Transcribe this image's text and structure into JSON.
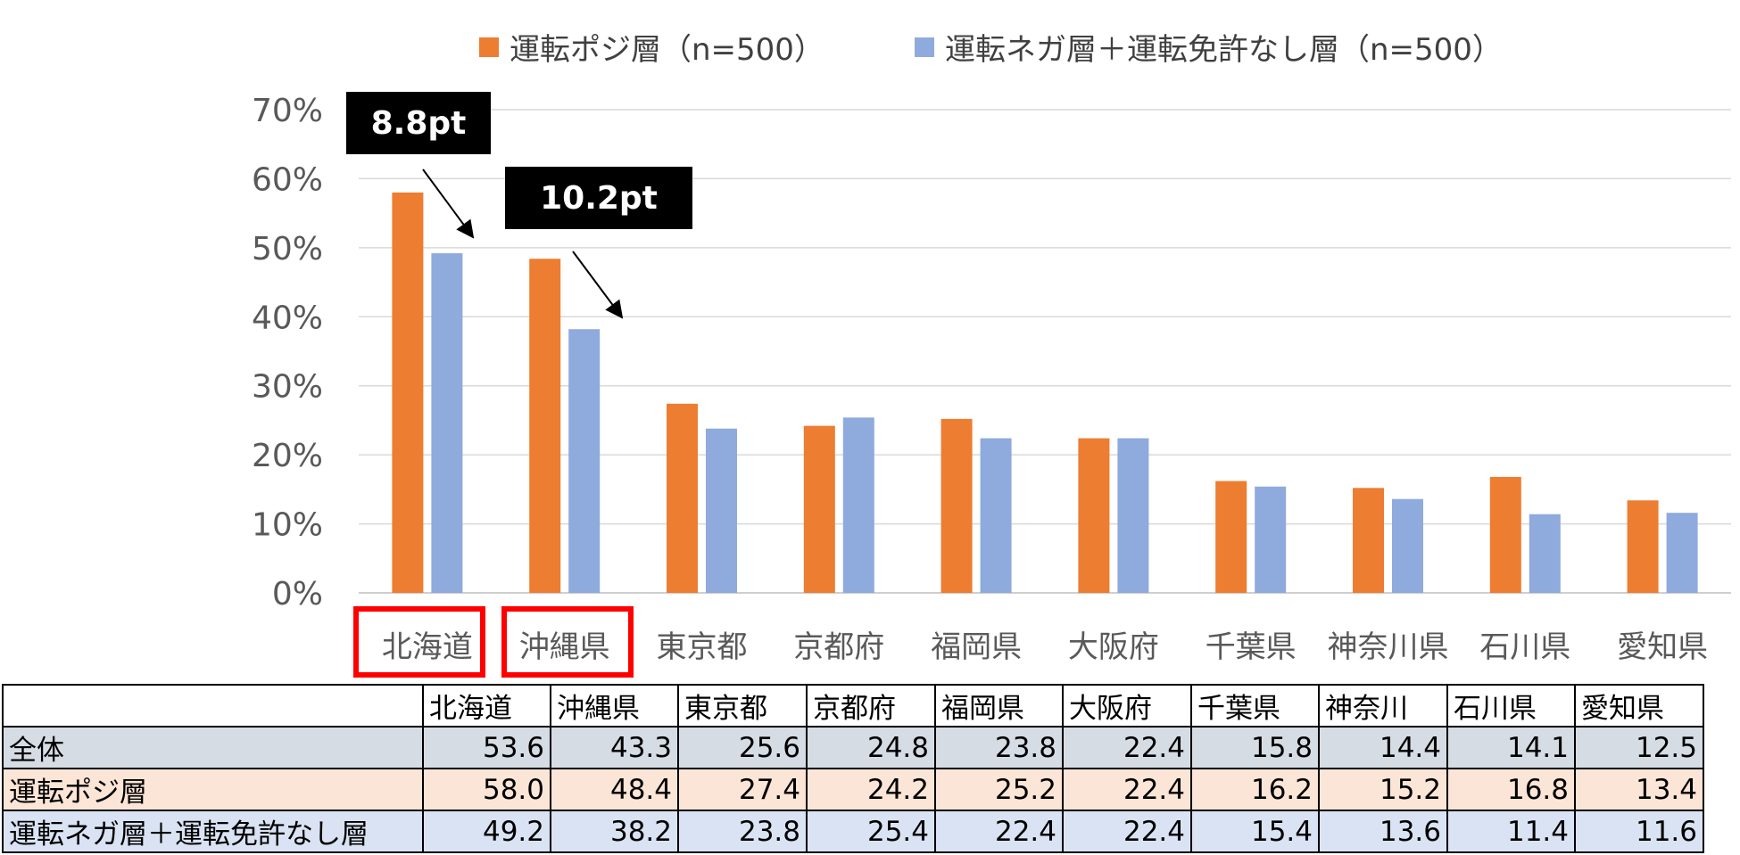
{
  "chart_data": {
    "type": "bar",
    "categories": [
      "北海道",
      "沖縄県",
      "東京都",
      "京都府",
      "福岡県",
      "大阪府",
      "千葉県",
      "神奈川県",
      "石川県",
      "愛知県"
    ],
    "series": [
      {
        "name": "運転ポジ層（n=500）",
        "color": "#ed7d31",
        "values": [
          58.0,
          48.4,
          27.4,
          24.2,
          25.2,
          22.4,
          16.2,
          15.2,
          16.8,
          13.4
        ]
      },
      {
        "name": "運転ネガ層＋運転免許なし層（n=500）",
        "color": "#8faadc",
        "values": [
          49.2,
          38.2,
          23.8,
          25.4,
          22.4,
          22.4,
          15.4,
          13.6,
          11.4,
          11.6
        ]
      }
    ],
    "ylim": [
      0,
      70
    ],
    "yticks": [
      "0%",
      "10%",
      "20%",
      "30%",
      "40%",
      "50%",
      "60%",
      "70%"
    ],
    "grid": true,
    "legend_position": "top",
    "annotations": [
      {
        "text": "8.8pt",
        "category": "北海道"
      },
      {
        "text": "10.2pt",
        "category": "沖縄県"
      }
    ],
    "highlighted_categories": [
      "北海道",
      "沖縄県"
    ]
  },
  "table": {
    "headers": [
      "",
      "北海道",
      "沖縄県",
      "東京都",
      "京都府",
      "福岡県",
      "大阪府",
      "千葉県",
      "神奈川",
      "石川県",
      "愛知県"
    ],
    "rows": [
      {
        "label": "全体",
        "values": [
          "53.6",
          "43.3",
          "25.6",
          "24.8",
          "23.8",
          "22.4",
          "15.8",
          "14.4",
          "14.1",
          "12.5"
        ]
      },
      {
        "label": "運転ポジ層",
        "values": [
          "58.0",
          "48.4",
          "27.4",
          "24.2",
          "25.2",
          "22.4",
          "16.2",
          "15.2",
          "16.8",
          "13.4"
        ]
      },
      {
        "label": "運転ネガ層＋運転免許なし層",
        "values": [
          "49.2",
          "38.2",
          "23.8",
          "25.4",
          "22.4",
          "22.4",
          "15.4",
          "13.6",
          "11.4",
          "11.6"
        ]
      }
    ]
  }
}
